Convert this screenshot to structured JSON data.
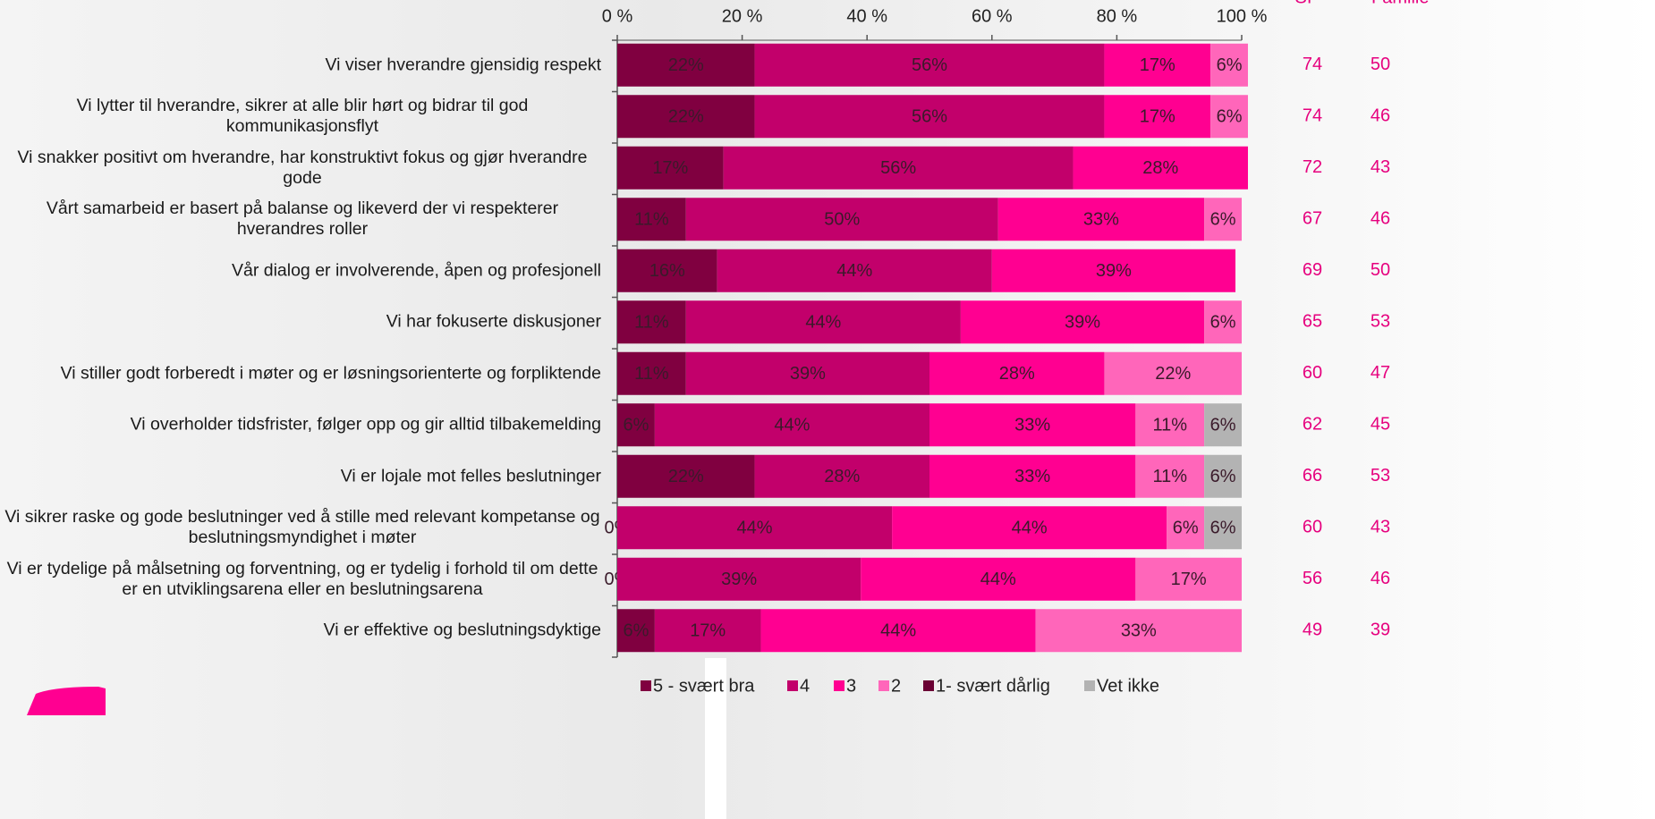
{
  "chart_data": {
    "type": "stacked-barh",
    "categories": [
      "Vi viser hverandre gjensidig respekt",
      "Vi lytter til hverandre, sikrer at alle blir hørt og bidrar til god kommunikasjonsflyt",
      "Vi snakker positivt om hverandre, har konstruktivt fokus og gjør hverandre gode",
      "Vårt samarbeid er basert på balanse og likeverd der vi respekterer hverandres roller",
      "Vår dialog er involverende, åpen og profesjonell",
      "Vi har fokuserte diskusjoner",
      "Vi stiller godt forberedt i møter og er løsningsorienterte og forpliktende",
      "Vi overholder tidsfrister, følger opp og gir alltid tilbakemelding",
      "Vi er lojale mot felles beslutninger",
      "Vi sikrer raske og gode beslutninger ved å stille med relevant kompetanse og beslutningsmyndighet i møter",
      "Vi er tydelige på målsetning og forventning, og er tydelig i forhold til om dette er en utviklingsarena eller en beslutningsarena",
      "Vi er effektive og beslutningsdyktige"
    ],
    "series": [
      {
        "name": "5 - svært bra",
        "color": "#800040",
        "values": [
          22,
          22,
          17,
          11,
          16,
          11,
          11,
          6,
          22,
          0,
          0,
          6
        ],
        "value_labels": [
          "22%",
          "22%",
          "17%",
          "11%",
          "16%",
          "11%",
          "11%",
          "6%",
          "22%",
          "0%",
          "0%",
          "6%"
        ]
      },
      {
        "name": "4",
        "color": "#c2006b",
        "values": [
          56,
          56,
          56,
          50,
          44,
          44,
          39,
          44,
          28,
          44,
          39,
          17
        ],
        "value_labels": [
          "56%",
          "56%",
          "56%",
          "50%",
          "44%",
          "44%",
          "39%",
          "44%",
          "28%",
          "44%",
          "39%",
          "17%"
        ]
      },
      {
        "name": "3",
        "color": "#ff0091",
        "values": [
          17,
          17,
          28,
          33,
          39,
          39,
          28,
          33,
          33,
          44,
          44,
          44
        ],
        "value_labels": [
          "17%",
          "17%",
          "28%",
          "33%",
          "39%",
          "39%",
          "28%",
          "33%",
          "33%",
          "44%",
          "44%",
          "44%"
        ]
      },
      {
        "name": "2",
        "color": "#ff66ba",
        "values": [
          6,
          6,
          null,
          6,
          null,
          6,
          22,
          11,
          11,
          6,
          17,
          33
        ],
        "value_labels": [
          "6%",
          "6%",
          null,
          "6%",
          null,
          "6%",
          "22%",
          "11%",
          "11%",
          "6%",
          "17%",
          "33%"
        ]
      },
      {
        "name": "1- svært dårlig",
        "color": "#6a0034",
        "values": [
          null,
          null,
          null,
          null,
          null,
          null,
          null,
          null,
          null,
          null,
          null,
          null
        ]
      },
      {
        "name": "Vet ikke",
        "color": "#b3b3b3",
        "values": [
          null,
          null,
          null,
          null,
          null,
          null,
          null,
          6,
          6,
          6,
          null,
          null
        ],
        "value_labels": [
          null,
          null,
          null,
          null,
          null,
          null,
          null,
          "6%",
          "6%",
          "6%",
          null,
          null
        ]
      }
    ],
    "xlim": [
      0,
      100
    ],
    "xticks": [
      {
        "value": 0,
        "label": "0 %"
      },
      {
        "value": 20,
        "label": "20 %"
      },
      {
        "value": 40,
        "label": "40 %"
      },
      {
        "value": 60,
        "label": "60 %"
      },
      {
        "value": 80,
        "label": "80 %"
      },
      {
        "value": 100,
        "label": "100 %"
      }
    ],
    "columns": [
      {
        "header": "SI",
        "values": [
          74,
          74,
          72,
          67,
          69,
          65,
          60,
          62,
          66,
          60,
          56,
          49
        ]
      },
      {
        "header": "Familie",
        "values": [
          50,
          46,
          43,
          46,
          50,
          53,
          47,
          45,
          53,
          43,
          46,
          39
        ]
      }
    ],
    "column_color": "#e6007e"
  }
}
